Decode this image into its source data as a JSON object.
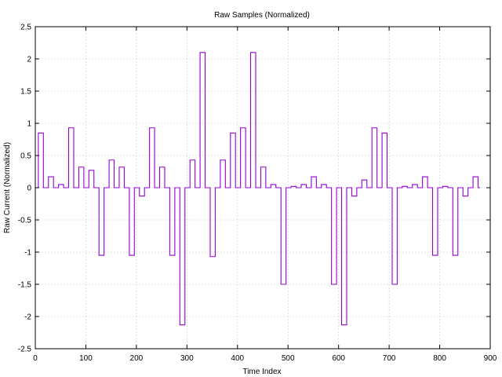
{
  "chart_data": {
    "type": "line",
    "title": "Raw Samples (Normalized)",
    "xlabel": "Time Index",
    "ylabel": "Raw Current (Normalized)",
    "xlim": [
      0,
      900
    ],
    "ylim": [
      -2.5,
      2.5
    ],
    "xticks": [
      0,
      100,
      200,
      300,
      400,
      500,
      600,
      700,
      800,
      900
    ],
    "yticks": [
      -2.5,
      -2,
      -1.5,
      -1,
      -0.5,
      0,
      0.5,
      1,
      1.5,
      2,
      2.5
    ],
    "xtick_labels": [
      "0",
      "100",
      "200",
      "300",
      "400",
      "500",
      "600",
      "700",
      "800",
      "900"
    ],
    "ytick_labels": [
      "-2.5",
      "-2",
      "-1.5",
      "-1",
      "-0.5",
      "0",
      "0.5",
      "1",
      "1.5",
      "2",
      "2.5"
    ],
    "grid": true,
    "line_style": "step",
    "series": [
      {
        "color": "#9400d3",
        "segments": [
          [
            0,
            0
          ],
          [
            6,
            0.85
          ],
          [
            16,
            0
          ],
          [
            26,
            0.17
          ],
          [
            36,
            0
          ],
          [
            46,
            0.05
          ],
          [
            56,
            0
          ],
          [
            66,
            0.93
          ],
          [
            76,
            0
          ],
          [
            86,
            0.32
          ],
          [
            96,
            0
          ],
          [
            106,
            0.27
          ],
          [
            116,
            0
          ],
          [
            126,
            -1.05
          ],
          [
            136,
            0
          ],
          [
            146,
            0.43
          ],
          [
            156,
            0
          ],
          [
            166,
            0.32
          ],
          [
            176,
            0
          ],
          [
            186,
            -1.05
          ],
          [
            196,
            0
          ],
          [
            206,
            -0.13
          ],
          [
            216,
            0
          ],
          [
            226,
            0.93
          ],
          [
            236,
            0
          ],
          [
            246,
            0.32
          ],
          [
            256,
            0
          ],
          [
            266,
            -1.05
          ],
          [
            276,
            0
          ],
          [
            286,
            -2.13
          ],
          [
            296,
            0
          ],
          [
            306,
            0.43
          ],
          [
            316,
            0
          ],
          [
            326,
            2.1
          ],
          [
            336,
            0
          ],
          [
            346,
            -1.07
          ],
          [
            356,
            0
          ],
          [
            366,
            0.43
          ],
          [
            376,
            0
          ],
          [
            386,
            0.85
          ],
          [
            396,
            0
          ],
          [
            406,
            0.93
          ],
          [
            416,
            0
          ],
          [
            426,
            2.1
          ],
          [
            436,
            0
          ],
          [
            446,
            0.32
          ],
          [
            456,
            0
          ],
          [
            466,
            0.05
          ],
          [
            476,
            0
          ],
          [
            486,
            -1.5
          ],
          [
            496,
            0
          ],
          [
            506,
            0.02
          ],
          [
            516,
            0
          ],
          [
            526,
            0.05
          ],
          [
            536,
            0
          ],
          [
            546,
            0.17
          ],
          [
            556,
            0
          ],
          [
            566,
            0.05
          ],
          [
            576,
            0
          ],
          [
            586,
            -1.5
          ],
          [
            596,
            0
          ],
          [
            606,
            -2.13
          ],
          [
            616,
            0
          ],
          [
            626,
            -0.13
          ],
          [
            636,
            0
          ],
          [
            646,
            0.12
          ],
          [
            656,
            0
          ],
          [
            666,
            0.93
          ],
          [
            676,
            0
          ],
          [
            686,
            0.85
          ],
          [
            696,
            0
          ],
          [
            706,
            -1.5
          ],
          [
            716,
            0
          ],
          [
            726,
            0.02
          ],
          [
            736,
            0
          ],
          [
            746,
            0.05
          ],
          [
            756,
            0
          ],
          [
            766,
            0.17
          ],
          [
            776,
            0
          ],
          [
            786,
            -1.05
          ],
          [
            796,
            0
          ],
          [
            806,
            0.02
          ],
          [
            816,
            0
          ],
          [
            826,
            -1.05
          ],
          [
            836,
            0
          ],
          [
            846,
            -0.13
          ],
          [
            856,
            0
          ],
          [
            866,
            0.17
          ],
          [
            876,
            0
          ],
          [
            880,
            0
          ]
        ]
      }
    ]
  }
}
